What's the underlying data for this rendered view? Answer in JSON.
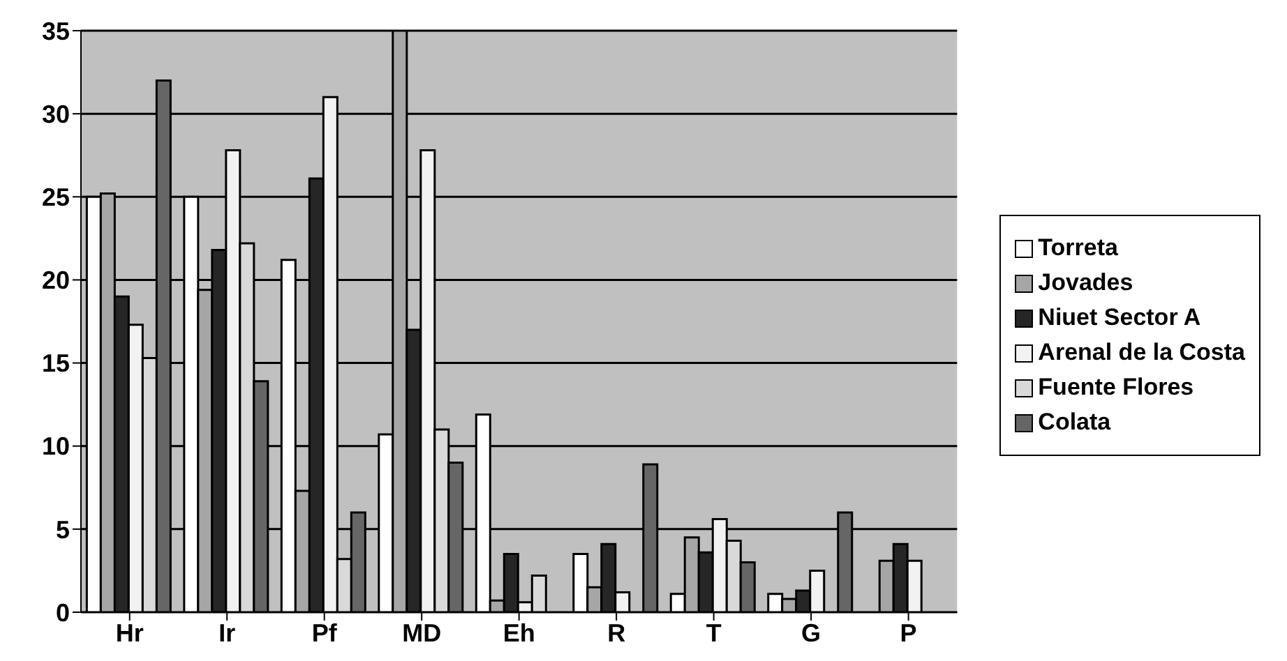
{
  "chart_data": {
    "type": "bar",
    "categories": [
      "Hr",
      "Ir",
      "Pf",
      "MD",
      "Eh",
      "R",
      "T",
      "G",
      "P"
    ],
    "series": [
      {
        "name": "Torreta",
        "color": "#ffffff",
        "values": [
          25,
          25,
          21.2,
          10.7,
          11.9,
          3.5,
          1.1,
          1.1,
          0
        ]
      },
      {
        "name": "Jovades",
        "color": "#a6a6a6",
        "values": [
          25.2,
          19.4,
          7.3,
          35,
          0.7,
          1.5,
          4.5,
          0.8,
          3.1
        ]
      },
      {
        "name": "Niuet Sector A",
        "color": "#262626",
        "values": [
          19,
          21.8,
          26.1,
          17,
          3.5,
          4.1,
          3.6,
          1.3,
          4.1
        ]
      },
      {
        "name": "Arenal de la Costa",
        "color": "#f2f2f2",
        "values": [
          17.3,
          27.8,
          31,
          27.8,
          0.6,
          1.2,
          5.6,
          2.5,
          3.1
        ]
      },
      {
        "name": "Fuente Flores",
        "color": "#d9d9d9",
        "values": [
          15.3,
          22.2,
          3.2,
          11,
          2.2,
          0,
          4.3,
          0,
          0
        ]
      },
      {
        "name": "Colata",
        "color": "#666666",
        "values": [
          32,
          13.9,
          6,
          9,
          0,
          8.9,
          3,
          6,
          0
        ]
      }
    ],
    "ylim": [
      0,
      35
    ],
    "yticks": [
      0,
      5,
      10,
      15,
      20,
      25,
      30,
      35
    ],
    "grid": "y",
    "legend": "right"
  }
}
